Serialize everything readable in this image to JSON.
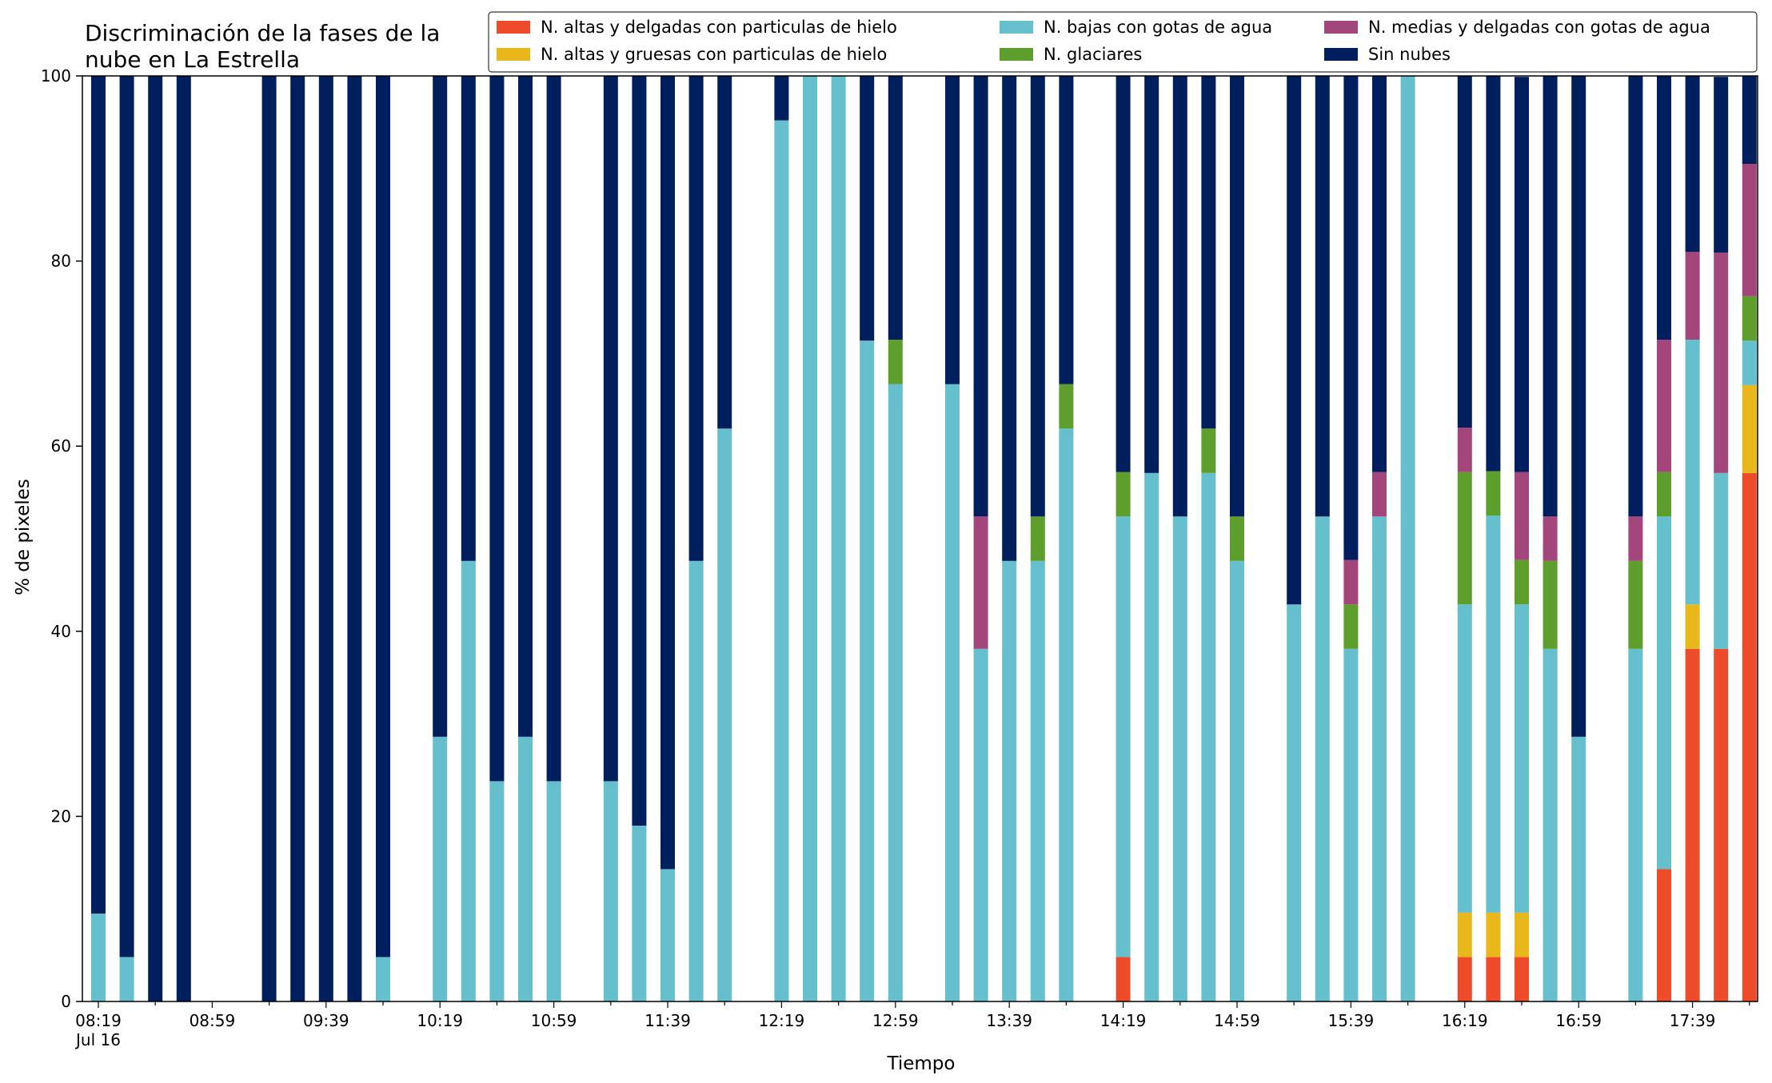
{
  "chart_data": {
    "type": "bar",
    "stacked": true,
    "title_lines": [
      "Discriminación de la fases de la",
      "nube en La Estrella"
    ],
    "xlabel": "Tiempo",
    "ylabel": "% de pixeles",
    "ylim": [
      0,
      100
    ],
    "yticks": [
      0,
      20,
      40,
      60,
      80,
      100
    ],
    "legend_position": "top-right",
    "legend_columns": 3,
    "x_start": "08:19",
    "x_step_minutes": 10,
    "x_count": 59,
    "xticks": [
      {
        "index": 0,
        "label": "08:19",
        "sublabel": "Jul 16"
      },
      {
        "index": 4,
        "label": "08:59"
      },
      {
        "index": 8,
        "label": "09:39"
      },
      {
        "index": 12,
        "label": "10:19"
      },
      {
        "index": 16,
        "label": "10:59"
      },
      {
        "index": 20,
        "label": "11:39"
      },
      {
        "index": 24,
        "label": "12:19"
      },
      {
        "index": 28,
        "label": "12:59"
      },
      {
        "index": 32,
        "label": "13:39"
      },
      {
        "index": 36,
        "label": "14:19"
      },
      {
        "index": 40,
        "label": "14:59"
      },
      {
        "index": 44,
        "label": "15:39"
      },
      {
        "index": 48,
        "label": "16:19"
      },
      {
        "index": 52,
        "label": "16:59"
      },
      {
        "index": 56,
        "label": "17:39"
      }
    ],
    "series": [
      {
        "name": "N. altas y delgadas con particulas de hielo",
        "color": "#ee4b2b",
        "values": [
          0,
          0,
          0,
          0,
          null,
          null,
          0,
          0,
          0,
          0,
          0,
          null,
          0,
          0,
          0,
          0,
          0,
          null,
          0,
          0,
          0,
          0,
          0,
          null,
          0,
          0,
          0,
          0,
          0,
          null,
          0,
          0,
          0,
          0,
          0,
          null,
          4.8,
          0,
          0,
          0,
          0,
          null,
          0,
          0,
          0,
          0,
          0,
          null,
          4.8,
          4.8,
          4.8,
          0,
          0,
          null,
          0,
          14.3,
          38.1,
          38.1,
          57.1
        ]
      },
      {
        "name": "N. altas y gruesas con particulas de hielo",
        "color": "#e8b81a",
        "values": [
          0,
          0,
          0,
          0,
          null,
          null,
          0,
          0,
          0,
          0,
          0,
          null,
          0,
          0,
          0,
          0,
          0,
          null,
          0,
          0,
          0,
          0,
          0,
          null,
          0,
          0,
          0,
          0,
          0,
          null,
          0,
          0,
          0,
          0,
          0,
          null,
          0,
          0,
          0,
          0,
          0,
          null,
          0,
          0,
          0,
          0,
          0,
          null,
          4.8,
          4.8,
          4.8,
          0,
          0,
          null,
          0,
          0,
          4.8,
          0,
          9.5
        ]
      },
      {
        "name": "N. bajas con gotas de agua",
        "color": "#66bfcc",
        "values": [
          9.5,
          4.8,
          0,
          0,
          null,
          null,
          0,
          0,
          0,
          0,
          4.8,
          null,
          28.6,
          47.6,
          23.8,
          28.6,
          23.8,
          null,
          23.8,
          19.0,
          14.3,
          47.6,
          61.9,
          null,
          95.2,
          100,
          100,
          71.4,
          66.7,
          null,
          66.7,
          38.1,
          47.6,
          47.6,
          61.9,
          null,
          47.6,
          57.1,
          52.4,
          57.1,
          47.6,
          null,
          42.9,
          52.4,
          38.1,
          52.4,
          100,
          null,
          33.3,
          42.9,
          33.3,
          38.1,
          28.6,
          null,
          38.1,
          38.1,
          28.6,
          19.0,
          4.8
        ]
      },
      {
        "name": "N. glaciares",
        "color": "#5e9e2c",
        "values": [
          0,
          0,
          0,
          0,
          null,
          null,
          0,
          0,
          0,
          0,
          0,
          null,
          0,
          0,
          0,
          0,
          0,
          null,
          0,
          0,
          0,
          0,
          0,
          null,
          0,
          0,
          0,
          0,
          4.8,
          null,
          0,
          0,
          0,
          4.8,
          4.8,
          null,
          4.8,
          0,
          0,
          4.8,
          4.8,
          null,
          0,
          0,
          4.8,
          0,
          0,
          null,
          14.3,
          4.8,
          4.8,
          9.5,
          0,
          null,
          9.5,
          4.8,
          0,
          0,
          4.8
        ]
      },
      {
        "name": "N. medias y delgadas con gotas de agua",
        "color": "#a3467b",
        "values": [
          0,
          0,
          0,
          0,
          null,
          null,
          0,
          0,
          0,
          0,
          0,
          null,
          0,
          0,
          0,
          0,
          0,
          null,
          0,
          0,
          0,
          0,
          0,
          null,
          0,
          0,
          0,
          0,
          0,
          null,
          0,
          14.3,
          0,
          0,
          0,
          null,
          0,
          0,
          0,
          0,
          0,
          null,
          0,
          0,
          4.8,
          4.8,
          0,
          null,
          4.8,
          0,
          9.5,
          4.8,
          0,
          null,
          4.8,
          14.3,
          9.5,
          23.8,
          14.3
        ]
      },
      {
        "name": "Sin nubes",
        "color": "#001f5c",
        "values": [
          90.5,
          95.2,
          100,
          100,
          null,
          null,
          100,
          100,
          100,
          100,
          95.2,
          null,
          71.4,
          52.4,
          76.2,
          71.4,
          76.2,
          null,
          76.2,
          81.0,
          85.7,
          52.4,
          38.1,
          null,
          4.8,
          0,
          0,
          28.6,
          28.6,
          null,
          33.3,
          47.6,
          52.4,
          47.6,
          33.3,
          null,
          42.9,
          42.9,
          47.6,
          38.1,
          47.6,
          null,
          57.1,
          47.6,
          52.4,
          42.9,
          0,
          null,
          38.1,
          42.7,
          42.7,
          47.6,
          71.4,
          null,
          47.6,
          28.6,
          19.0,
          19.0,
          9.5
        ]
      }
    ]
  }
}
